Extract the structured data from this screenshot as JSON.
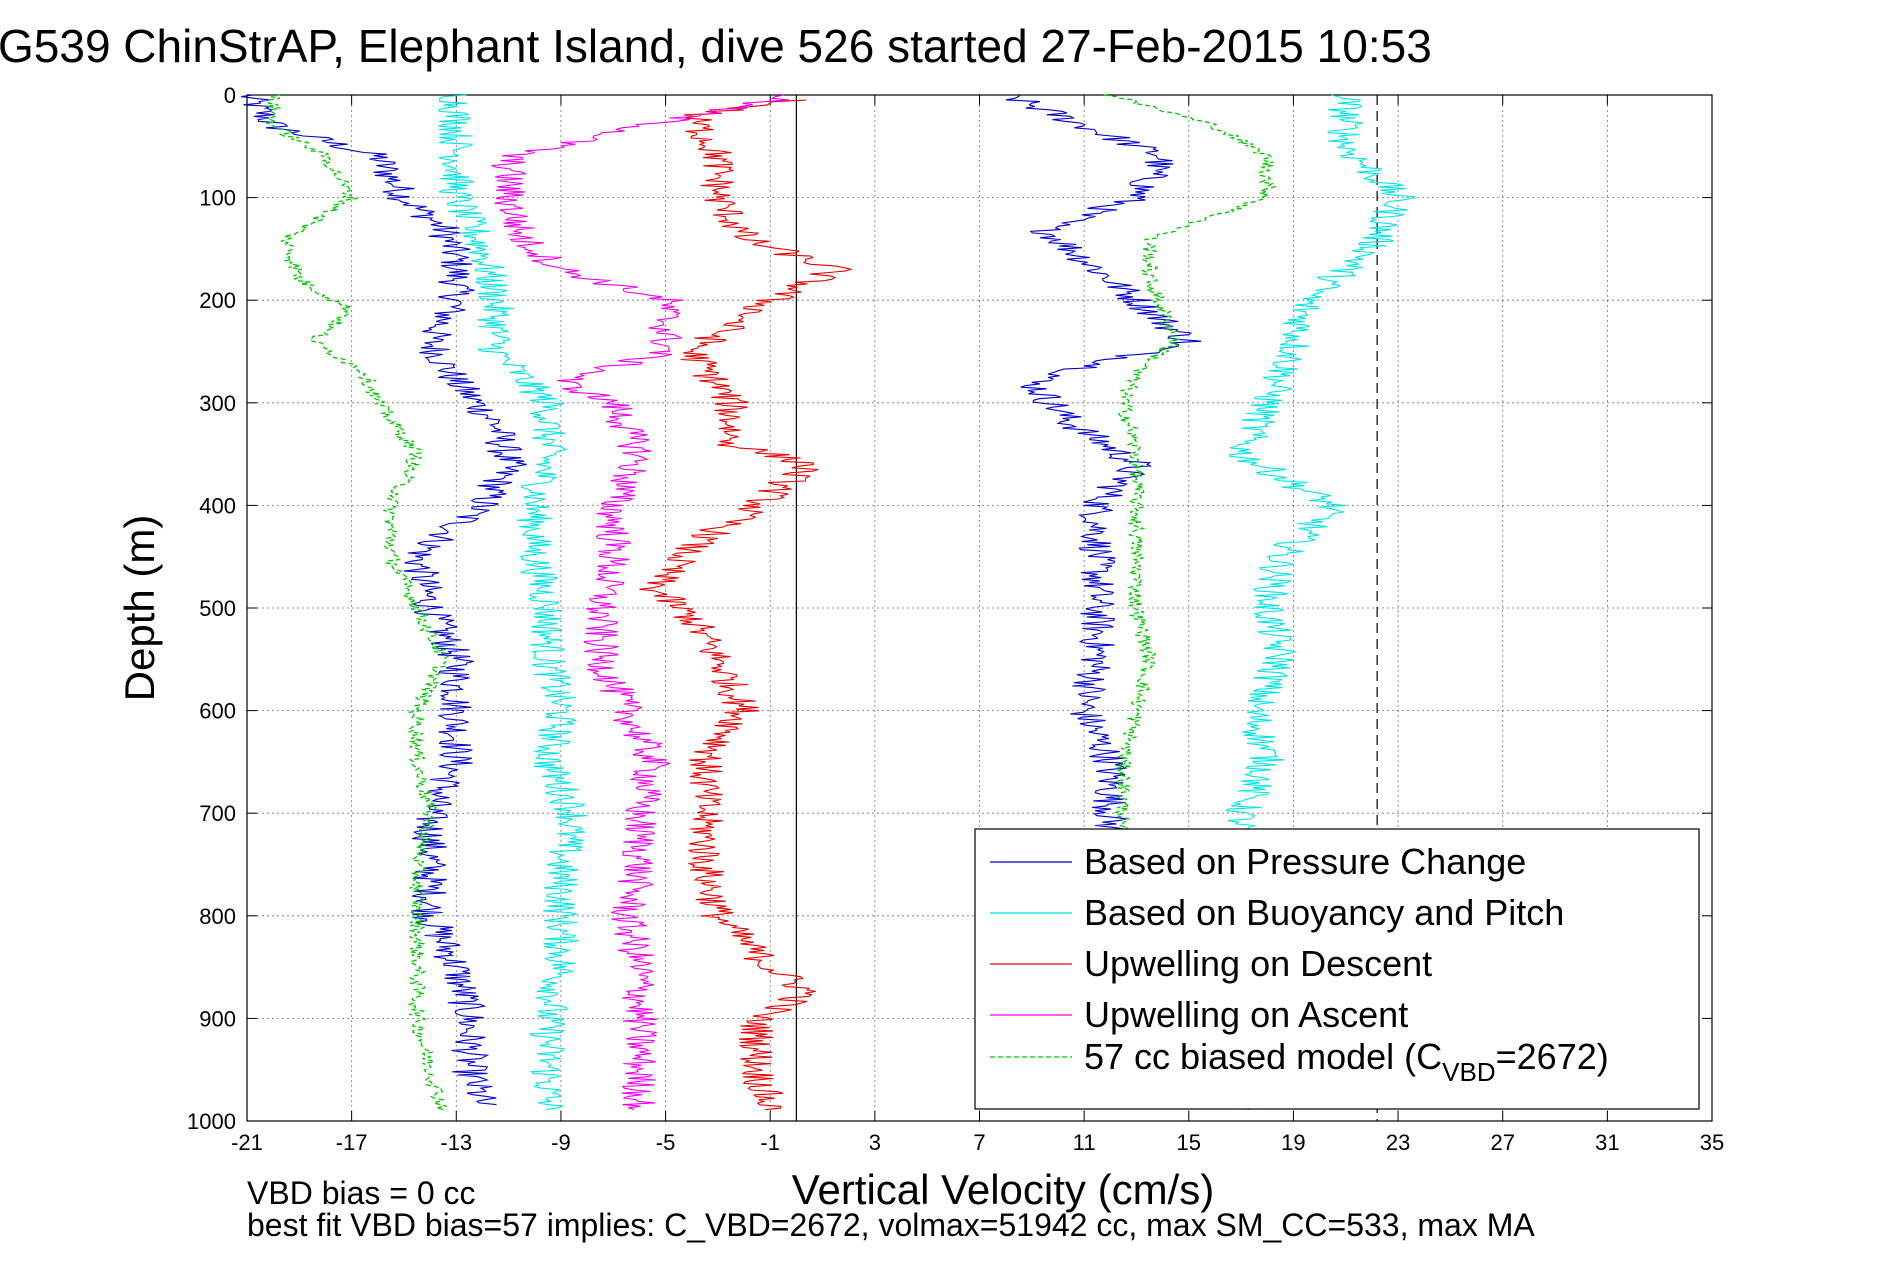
{
  "chart_data": {
    "type": "line",
    "title": "G539 ChinStrAP, Elephant Island, dive 526 started 27-Feb-2015 10:53",
    "xlabel": "Vertical Velocity (cm/s)",
    "ylabel": "Depth (m)",
    "xlim": [
      -21,
      35
    ],
    "ylim": [
      0,
      1000
    ],
    "y_reversed": true,
    "grid": true,
    "x_ticks": [
      "-21",
      "-17",
      "-13",
      "-9",
      "-5",
      "-1",
      "3",
      "7",
      "11",
      "15",
      "19",
      "23",
      "27",
      "31",
      "35"
    ],
    "y_ticks": [
      "0",
      "100",
      "200",
      "300",
      "400",
      "500",
      "600",
      "700",
      "800",
      "900",
      "1000"
    ],
    "footer_lines": [
      "VBD bias = 0 cc",
      "best fit VBD bias=57 implies: C_VBD=2672, volmax=51942 cc, max SM_CC=533, max MA"
    ],
    "legend_position": "bottom-right",
    "reference_lines": [
      {
        "x": 0,
        "style": "solid",
        "color": "#000000"
      },
      {
        "x": 22.2,
        "style": "dashed",
        "color": "#000000"
      }
    ],
    "series": [
      {
        "name": "Based on Pressure Change",
        "color": "#0000cc",
        "dash": "solid",
        "depth": [
          0,
          30,
          60,
          100,
          130,
          160,
          200,
          240,
          280,
          320,
          360,
          400,
          450,
          500,
          550,
          600,
          650,
          700,
          750,
          800,
          850,
          900,
          950,
          985
        ],
        "descent": [
          -21,
          -20,
          -16,
          -15,
          -13.5,
          -13,
          -13,
          -14,
          -13,
          -11.5,
          -11,
          -12,
          -14.5,
          -14,
          -13,
          -13,
          -13,
          -14,
          -14,
          -14,
          -13,
          -12.5,
          -12.5,
          -12
        ],
        "ascent": [
          8,
          11,
          14,
          13,
          9.5,
          11,
          13,
          15,
          9,
          10.5,
          13,
          11.5,
          11.5,
          11.5,
          11.5,
          11,
          12,
          12,
          12,
          11,
          11,
          11,
          11,
          11
        ]
      },
      {
        "name": "Based on Buoyancy and Pitch",
        "color": "#00e5e5",
        "dash": "solid",
        "depth": [
          0,
          50,
          100,
          150,
          200,
          250,
          300,
          350,
          400,
          450,
          500,
          550,
          600,
          650,
          700,
          750,
          800,
          850,
          900,
          950,
          990
        ],
        "descent": [
          -13,
          -13,
          -13,
          -12,
          -11.5,
          -11.5,
          -9.5,
          -9.5,
          -10,
          -10,
          -9.5,
          -9.5,
          -9,
          -9.5,
          -8.5,
          -9,
          -9,
          -9,
          -9.5,
          -9.5,
          -9.5
        ],
        "ascent": [
          21,
          21,
          23,
          22,
          19.5,
          19,
          18,
          17,
          20.5,
          18.5,
          18,
          18.5,
          17.5,
          18,
          17,
          17,
          17,
          17,
          17,
          17,
          17
        ]
      },
      {
        "name": "Upwelling on Descent",
        "color": "#e60000",
        "dash": "solid",
        "depth": [
          5,
          20,
          60,
          100,
          140,
          170,
          200,
          250,
          300,
          340,
          360,
          400,
          440,
          480,
          510,
          550,
          600,
          650,
          700,
          750,
          800,
          850,
          875,
          900,
          950,
          990
        ],
        "values": [
          0,
          -4,
          -3,
          -3,
          -2,
          1.5,
          -1,
          -4,
          -2.5,
          -2.5,
          0.5,
          -1.5,
          -4,
          -5.5,
          -4,
          -3,
          -2,
          -3.5,
          -3.5,
          -3.5,
          -3,
          -1,
          0.5,
          -1.5,
          -1.5,
          -1
        ]
      },
      {
        "name": "Upwelling on Ascent",
        "color": "#ee00ee",
        "dash": "solid",
        "depth": [
          0,
          20,
          60,
          100,
          140,
          170,
          200,
          250,
          280,
          300,
          350,
          400,
          450,
          500,
          550,
          600,
          650,
          700,
          750,
          800,
          850,
          900,
          950,
          990
        ],
        "values": [
          0,
          -4,
          -11,
          -11,
          -10.5,
          -9,
          -5,
          -5,
          -9,
          -7,
          -6,
          -7,
          -7,
          -7.5,
          -7.5,
          -6.5,
          -5.5,
          -6,
          -6,
          -6.5,
          -6,
          -6,
          -6,
          -6
        ]
      },
      {
        "name": "57 cc biased model (C",
        "name_subscript": "VBD",
        "name_suffix": "=2672)",
        "color": "#00c800",
        "dash": "dashed",
        "depth": [
          0,
          30,
          60,
          100,
          140,
          180,
          210,
          240,
          270,
          300,
          350,
          400,
          450,
          500,
          550,
          600,
          650,
          700,
          750,
          800,
          850,
          900,
          950,
          990
        ],
        "descent": [
          -20,
          -20,
          -18,
          -17,
          -19.5,
          -19,
          -17,
          -18.5,
          -16.5,
          -16,
          -14.5,
          -15.5,
          -15.5,
          -14.5,
          -13.5,
          -14.5,
          -14.5,
          -14,
          -14.5,
          -14.5,
          -14.5,
          -14.5,
          -14,
          -13.5
        ],
        "ascent": [
          12,
          16,
          18,
          18,
          13.5,
          13.5,
          14,
          14.5,
          13,
          12.5,
          13,
          13,
          13,
          13,
          13.5,
          13,
          12.5,
          12.5,
          12,
          12,
          12,
          12,
          12,
          12
        ]
      }
    ]
  }
}
